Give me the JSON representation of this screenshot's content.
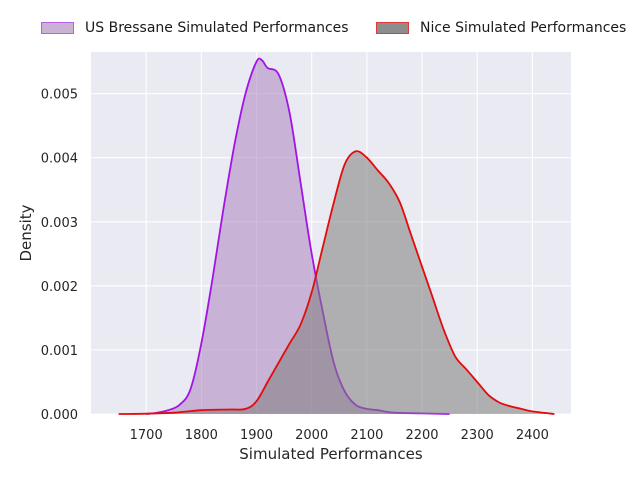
{
  "chart_data": {
    "type": "area",
    "title": "",
    "xlabel": "Simulated Performances",
    "ylabel": "Density",
    "xlim": [
      1600,
      2470
    ],
    "ylim": [
      0,
      0.00565
    ],
    "xticks": [
      1700,
      1800,
      1900,
      2000,
      2100,
      2200,
      2300,
      2400
    ],
    "xtick_labels": [
      "1700",
      "1800",
      "1900",
      "2000",
      "2100",
      "2200",
      "2300",
      "2400"
    ],
    "yticks": [
      0,
      0.001,
      0.002,
      0.003,
      0.004,
      0.005
    ],
    "ytick_labels": [
      "0.000",
      "0.001",
      "0.002",
      "0.003",
      "0.004",
      "0.005"
    ],
    "grid": true,
    "legend_position": "top",
    "series": [
      {
        "name": "US Bressane Simulated Performances",
        "line_color": "#a313e6",
        "fill_color": "#a579b8",
        "fill_opacity": 0.5,
        "x": [
          1700,
          1720,
          1740,
          1760,
          1780,
          1800,
          1820,
          1840,
          1860,
          1880,
          1900,
          1910,
          1920,
          1940,
          1960,
          1980,
          2000,
          2020,
          2040,
          2060,
          2080,
          2100,
          2120,
          2150,
          2200,
          2250
        ],
        "y": [
          0,
          2e-05,
          6e-05,
          0.00014,
          0.00038,
          0.0011,
          0.0021,
          0.0032,
          0.0042,
          0.005,
          0.0055,
          0.00552,
          0.0054,
          0.0053,
          0.0047,
          0.0036,
          0.0025,
          0.0016,
          0.0008,
          0.00035,
          0.00014,
          8e-05,
          6e-05,
          2e-05,
          1e-05,
          0
        ]
      },
      {
        "name": "Nice Simulated Performances",
        "line_color": "#e30b0b",
        "fill_color": "#7d7d7d",
        "fill_opacity": 0.55,
        "x": [
          1650,
          1700,
          1750,
          1800,
          1850,
          1880,
          1900,
          1920,
          1940,
          1960,
          1980,
          2000,
          2020,
          2040,
          2060,
          2080,
          2100,
          2120,
          2140,
          2160,
          2180,
          2200,
          2220,
          2240,
          2260,
          2280,
          2300,
          2320,
          2340,
          2360,
          2380,
          2400,
          2440
        ],
        "y": [
          0,
          4e-06,
          2e-05,
          6e-05,
          7e-05,
          8e-05,
          0.0002,
          0.0005,
          0.0008,
          0.0011,
          0.0014,
          0.0019,
          0.0026,
          0.0033,
          0.0039,
          0.0041,
          0.004,
          0.0038,
          0.0036,
          0.0033,
          0.0028,
          0.0023,
          0.0018,
          0.0013,
          0.0009,
          0.0007,
          0.0005,
          0.0003,
          0.00018,
          0.00012,
          8e-05,
          4e-05,
          0
        ]
      }
    ]
  }
}
